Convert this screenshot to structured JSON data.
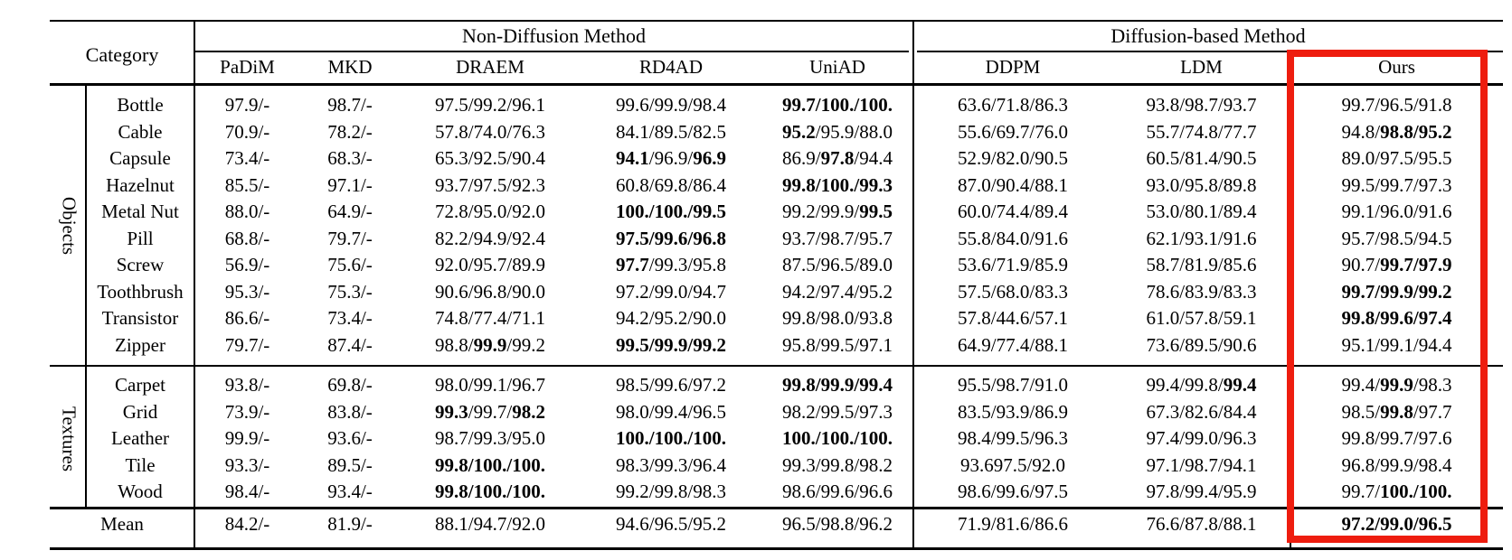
{
  "table": {
    "header": {
      "category_label": "Category",
      "group1": "Non-Diffusion Method",
      "group2": "Diffusion-based Method",
      "methods": [
        "PaDiM",
        "MKD",
        "DRAEM",
        "RD4AD",
        "UniAD",
        "DDPM",
        "LDM",
        "Ours"
      ]
    },
    "highlight_color": "#ee1d0f",
    "sections": [
      {
        "label": "Objects",
        "rows": [
          {
            "category": "Bottle",
            "cells": [
              "97.9/-",
              "98.7/-",
              "97.5/99.2/96.1",
              "99.6/99.9/98.4",
              "**99.7/100./100.**",
              "63.6/71.8/86.3",
              "93.8/98.7/93.7",
              "99.7/96.5/91.8"
            ]
          },
          {
            "category": "Cable",
            "cells": [
              "70.9/-",
              "78.2/-",
              "57.8/74.0/76.3",
              "84.1/89.5/82.5",
              "**95.2**/95.9/88.0",
              "55.6/69.7/76.0",
              "55.7/74.8/77.7",
              "94.8/**98.8/95.2**"
            ]
          },
          {
            "category": "Capsule",
            "cells": [
              "73.4/-",
              "68.3/-",
              "65.3/92.5/90.4",
              "**94.1**/96.9/**96.9**",
              "86.9/**97.8**/94.4",
              "52.9/82.0/90.5",
              "60.5/81.4/90.5",
              "89.0/97.5/95.5"
            ]
          },
          {
            "category": "Hazelnut",
            "cells": [
              "85.5/-",
              "97.1/-",
              "93.7/97.5/92.3",
              "60.8/69.8/86.4",
              "**99.8/100./99.3**",
              "87.0/90.4/88.1",
              "93.0/95.8/89.8",
              "99.5/99.7/97.3"
            ]
          },
          {
            "category": "Metal Nut",
            "cells": [
              "88.0/-",
              "64.9/-",
              "72.8/95.0/92.0",
              "**100./100./99.5**",
              "99.2/99.9/**99.5**",
              "60.0/74.4/89.4",
              "53.0/80.1/89.4",
              "99.1/96.0/91.6"
            ]
          },
          {
            "category": "Pill",
            "cells": [
              "68.8/-",
              "79.7/-",
              "82.2/94.9/92.4",
              "**97.5/99.6/96.8**",
              "93.7/98.7/95.7",
              "55.8/84.0/91.6",
              "62.1/93.1/91.6",
              "95.7/98.5/94.5"
            ]
          },
          {
            "category": "Screw",
            "cells": [
              "56.9/-",
              "75.6/-",
              "92.0/95.7/89.9",
              "**97.7**/99.3/95.8",
              "87.5/96.5/89.0",
              "53.6/71.9/85.9",
              "58.7/81.9/85.6",
              "90.7/**99.7/97.9**"
            ]
          },
          {
            "category": "Toothbrush",
            "cells": [
              "95.3/-",
              "75.3/-",
              "90.6/96.8/90.0",
              "97.2/99.0/94.7",
              "94.2/97.4/95.2",
              "57.5/68.0/83.3",
              "78.6/83.9/83.3",
              "**99.7/99.9/99.2**"
            ]
          },
          {
            "category": "Transistor",
            "cells": [
              "86.6/-",
              "73.4/-",
              "74.8/77.4/71.1",
              "94.2/95.2/90.0",
              "99.8/98.0/93.8",
              "57.8/44.6/57.1",
              "61.0/57.8/59.1",
              "**99.8/99.6/97.4**"
            ]
          },
          {
            "category": "Zipper",
            "cells": [
              "79.7/-",
              "87.4/-",
              "98.8/**99.9**/99.2",
              "**99.5/99.9/99.2**",
              "95.8/99.5/97.1",
              "64.9/77.4/88.1",
              "73.6/89.5/90.6",
              "95.1/99.1/94.4"
            ]
          }
        ]
      },
      {
        "label": "Textures",
        "rows": [
          {
            "category": "Carpet",
            "cells": [
              "93.8/-",
              "69.8/-",
              "98.0/99.1/96.7",
              "98.5/99.6/97.2",
              "**99.8/99.9/99.4**",
              "95.5/98.7/91.0",
              "99.4/99.8/**99.4**",
              "99.4/**99.9**/98.3"
            ]
          },
          {
            "category": "Grid",
            "cells": [
              "73.9/-",
              "83.8/-",
              "**99.3**/99.7/**98.2**",
              "98.0/99.4/96.5",
              "98.2/99.5/97.3",
              "83.5/93.9/86.9",
              "67.3/82.6/84.4",
              "98.5/**99.8**/97.7"
            ]
          },
          {
            "category": "Leather",
            "cells": [
              "99.9/-",
              "93.6/-",
              "98.7/99.3/95.0",
              "**100./100./100.**",
              "**100./100./100.**",
              "98.4/99.5/96.3",
              "97.4/99.0/96.3",
              "99.8/99.7/97.6"
            ]
          },
          {
            "category": "Tile",
            "cells": [
              "93.3/-",
              "89.5/-",
              "**99.8/100./100.**",
              "98.3/99.3/96.4",
              "99.3/99.8/98.2",
              "93.697.5/92.0",
              "97.1/98.7/94.1",
              "96.8/99.9/98.4"
            ]
          },
          {
            "category": "Wood",
            "cells": [
              "98.4/-",
              "93.4/-",
              "**99.8/100./100.**",
              "99.2/99.8/98.3",
              "98.6/99.6/96.6",
              "98.6/99.6/97.5",
              "97.8/99.4/95.9",
              "99.7/**100./100.**"
            ]
          }
        ]
      }
    ],
    "mean_row": {
      "category": "Mean",
      "cells": [
        "84.2/-",
        "81.9/-",
        "88.1/94.7/92.0",
        "94.6/96.5/95.2",
        "96.5/98.8/96.2",
        "71.9/81.6/86.6",
        "76.6/87.8/88.1",
        "**97.2/99.0/96.5**"
      ]
    }
  }
}
